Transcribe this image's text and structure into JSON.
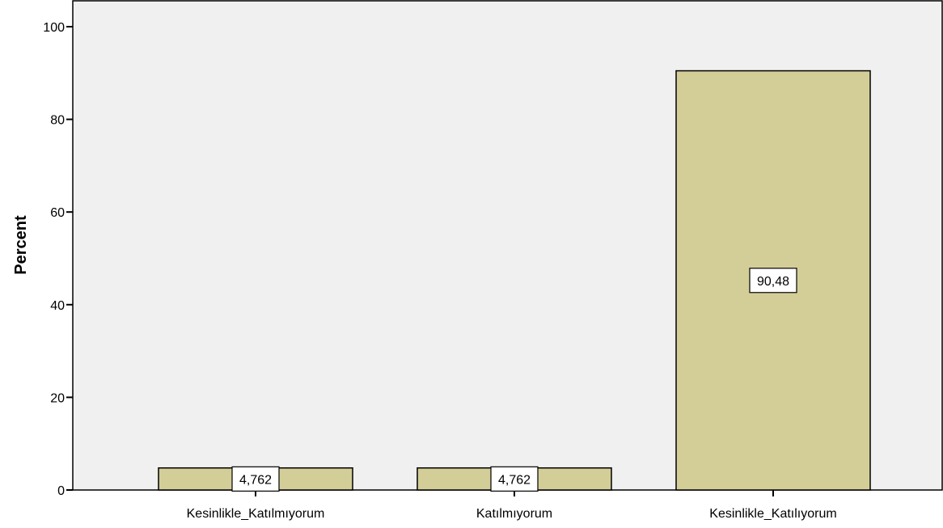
{
  "chart_data": {
    "type": "bar",
    "title": "",
    "xlabel": "",
    "ylabel": "Percent",
    "categories": [
      "Kesinlikle_Katılmıyorum",
      "Katılmıyorum",
      "Kesinlikle_Katılıyorum"
    ],
    "values": [
      4.762,
      4.762,
      90.48
    ],
    "value_labels": [
      "4,762",
      "4,762",
      "90,48"
    ],
    "ylim": [
      0,
      100
    ],
    "yticks": [
      0,
      20,
      40,
      60,
      80,
      100
    ],
    "grid": false,
    "legend": "none",
    "colors": {
      "bar_fill": "#d3ce98",
      "bar_stroke": "#000000",
      "plot_background": "#f0f0f0",
      "label_box_fill": "#ffffff"
    }
  }
}
